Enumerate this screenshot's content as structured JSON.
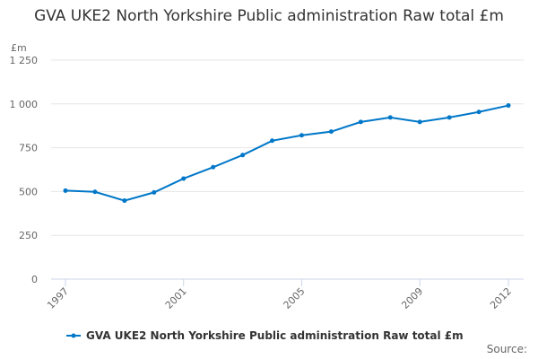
{
  "chart_data": {
    "type": "line",
    "title": "GVA UKE2 North Yorkshire Public administration Raw total £m",
    "ylabel": "£m",
    "xlabel": "",
    "x": [
      1997,
      1998,
      1999,
      2000,
      2001,
      2002,
      2003,
      2004,
      2005,
      2006,
      2007,
      2008,
      2009,
      2010,
      2011,
      2012
    ],
    "x_tick_labels": [
      "1997",
      "2001",
      "2005",
      "2009",
      "2012"
    ],
    "y_tick_labels": [
      "0",
      "250",
      "500",
      "750",
      "1 000",
      "1 250"
    ],
    "ylim": [
      0,
      1250
    ],
    "grid": true,
    "legend_placement": "bottom",
    "series": [
      {
        "name": "GVA UKE2 North Yorkshire Public administration Raw total £m",
        "color": "#0077c8",
        "values": [
          505,
          498,
          448,
          495,
          574,
          639,
          708,
          790,
          821,
          842,
          897,
          923,
          897,
          923,
          954,
          991
        ]
      }
    ]
  },
  "credits": "Source:"
}
